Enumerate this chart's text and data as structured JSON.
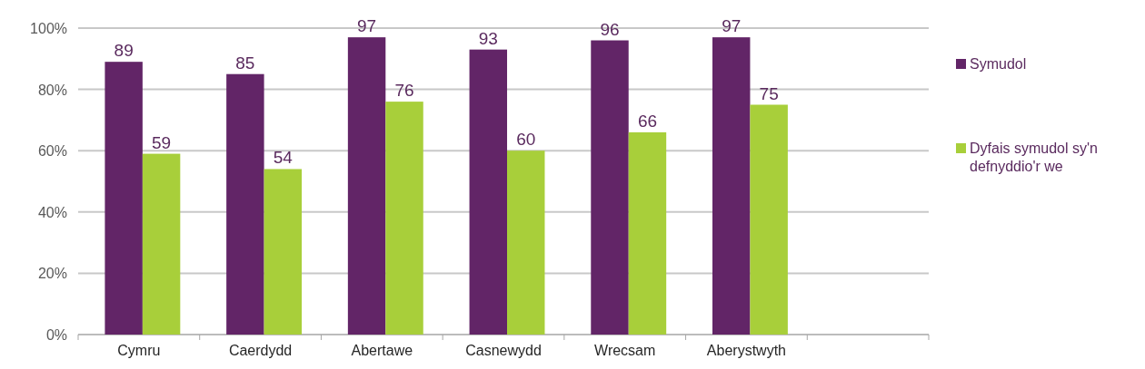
{
  "chart_data": {
    "type": "bar",
    "categories": [
      "Cymru",
      "Caerdydd",
      "Abertawe",
      "Casnewydd",
      "Wrecsam",
      "Aberystwyth",
      null
    ],
    "series": [
      {
        "name": "Symudol",
        "color": "#622567",
        "values": [
          89,
          85,
          97,
          93,
          96,
          97,
          null
        ]
      },
      {
        "name": "Dyfais symudol sy'n defnyddio'r we",
        "color": "#a8cf3a",
        "values": [
          59,
          54,
          76,
          60,
          66,
          75,
          null
        ]
      }
    ],
    "ylim": [
      0,
      100
    ],
    "yticks": [
      {
        "value": 0,
        "label": "0%"
      },
      {
        "value": 20,
        "label": "20%"
      },
      {
        "value": 40,
        "label": "40%"
      },
      {
        "value": 60,
        "label": "60%"
      },
      {
        "value": 80,
        "label": "80%"
      },
      {
        "value": 100,
        "label": "100%"
      }
    ],
    "grid": "y",
    "legend": "right",
    "data_labels": true
  }
}
